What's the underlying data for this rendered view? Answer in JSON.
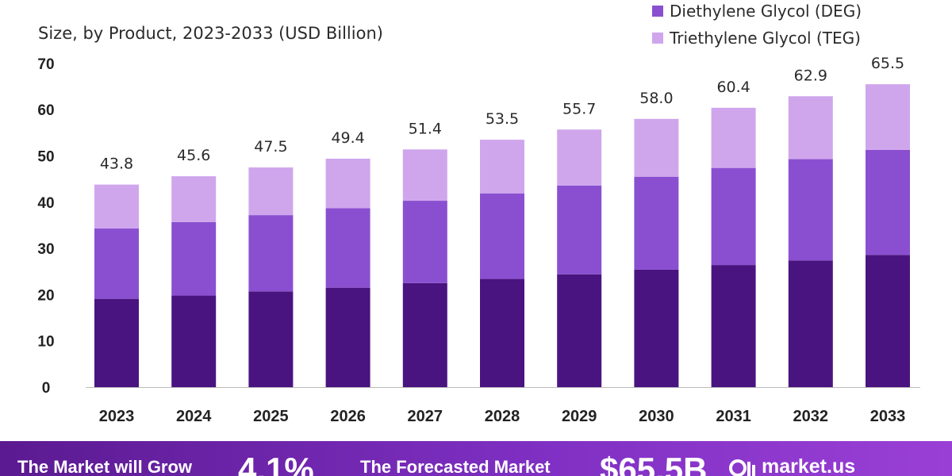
{
  "subtitle": "Size, by Product, 2023-2033 (USD Billion)",
  "legend": [
    {
      "label": "Diethylene Glycol (DEG)",
      "color": "#8a4fd0"
    },
    {
      "label": "Triethylene Glycol (TEG)",
      "color": "#cfa6ec"
    }
  ],
  "footer": {
    "grow_text": "The Market will Grow",
    "cagr": "4.1%",
    "forecast_text": "The Forecasted Market",
    "market_value": "$65.5B",
    "brand": "market.us"
  },
  "chart_data": {
    "type": "bar",
    "stacked": true,
    "categories": [
      "2023",
      "2024",
      "2025",
      "2026",
      "2027",
      "2028",
      "2029",
      "2030",
      "2031",
      "2032",
      "2033"
    ],
    "series": [
      {
        "values": [
          19.1,
          19.8,
          20.7,
          21.5,
          22.5,
          23.4,
          24.4,
          25.4,
          26.4,
          27.4,
          28.6
        ],
        "color": "#4a1480"
      },
      {
        "name": "Diethylene Glycol (DEG)",
        "values": [
          15.2,
          15.9,
          16.5,
          17.2,
          17.8,
          18.5,
          19.2,
          20.1,
          21.0,
          21.9,
          22.7
        ],
        "color": "#8a4fd0"
      },
      {
        "name": "Triethylene Glycol (TEG)",
        "values": [
          9.5,
          9.9,
          10.3,
          10.7,
          11.1,
          11.6,
          12.1,
          12.5,
          13.0,
          13.6,
          14.2
        ],
        "color": "#cfa6ec"
      }
    ],
    "totals": [
      "43.8",
      "45.6",
      "47.5",
      "49.4",
      "51.4",
      "53.5",
      "55.7",
      "58.0",
      "60.4",
      "62.9",
      "65.5"
    ],
    "ylim": [
      0,
      70
    ],
    "yticks": [
      "0",
      "10",
      "20",
      "30",
      "40",
      "50",
      "60",
      "70"
    ],
    "grid": false,
    "legend_position": "top-right"
  }
}
